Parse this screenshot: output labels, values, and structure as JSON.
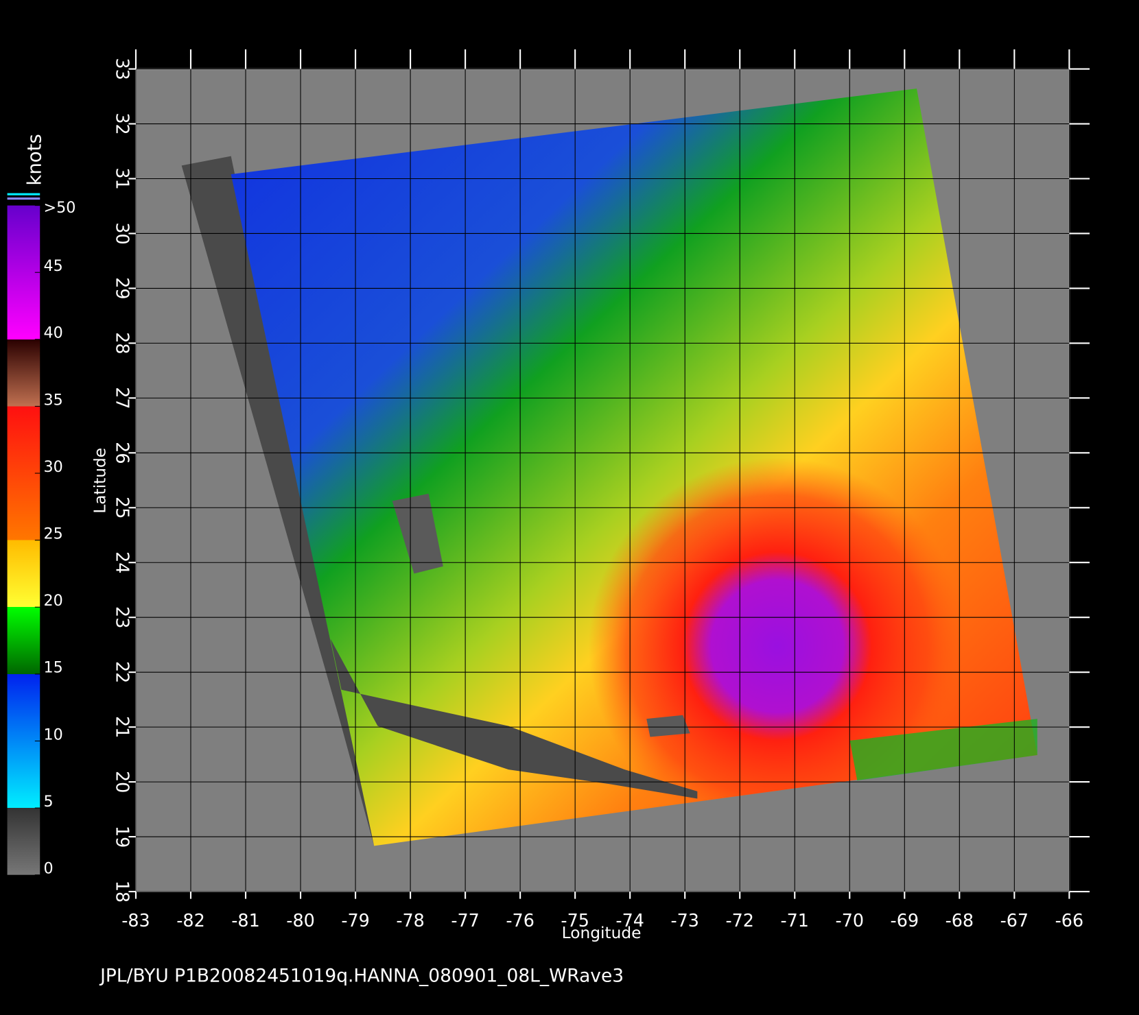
{
  "map": {
    "footer": "JPL/BYU  P1B20082451019q.HANNA_080901_08L_WRave3",
    "xlabel": "Longitude",
    "ylabel": "Latitude",
    "xlim": [
      -83,
      -66
    ],
    "ylim": [
      18,
      33
    ],
    "xticks": [
      -83,
      -82,
      -81,
      -80,
      -79,
      -78,
      -77,
      -76,
      -75,
      -74,
      -73,
      -72,
      -71,
      -70,
      -69,
      -68,
      -67,
      -66
    ],
    "yticks": [
      18,
      19,
      20,
      21,
      22,
      23,
      24,
      25,
      26,
      27,
      28,
      29,
      30,
      31,
      32,
      33
    ],
    "grid": true,
    "colorbar": {
      "title": "knots",
      "clim": [
        0,
        50
      ],
      "ticks": [
        0,
        5,
        10,
        15,
        20,
        25,
        30,
        35,
        {
          "value": 50,
          "label": ">50"
        },
        45,
        40
      ],
      "colors": [
        {
          "value": 0,
          "color": "#777777"
        },
        {
          "value": 5,
          "color": "#333333"
        },
        {
          "value": 5,
          "color": "#00eeff"
        },
        {
          "value": 15,
          "color": "#0022ee"
        },
        {
          "value": 15,
          "color": "#006600"
        },
        {
          "value": 20,
          "color": "#00ff00"
        },
        {
          "value": 20,
          "color": "#ffff33"
        },
        {
          "value": 25,
          "color": "#ffbb00"
        },
        {
          "value": 25,
          "color": "#ff7700"
        },
        {
          "value": 35,
          "color": "#ff1010"
        },
        {
          "value": 35,
          "color": "#c07050"
        },
        {
          "value": 40,
          "color": "#2a0000"
        },
        {
          "value": 40,
          "color": "#ff00ff"
        },
        {
          "value": 50,
          "color": "#6600cc"
        }
      ]
    }
  }
}
